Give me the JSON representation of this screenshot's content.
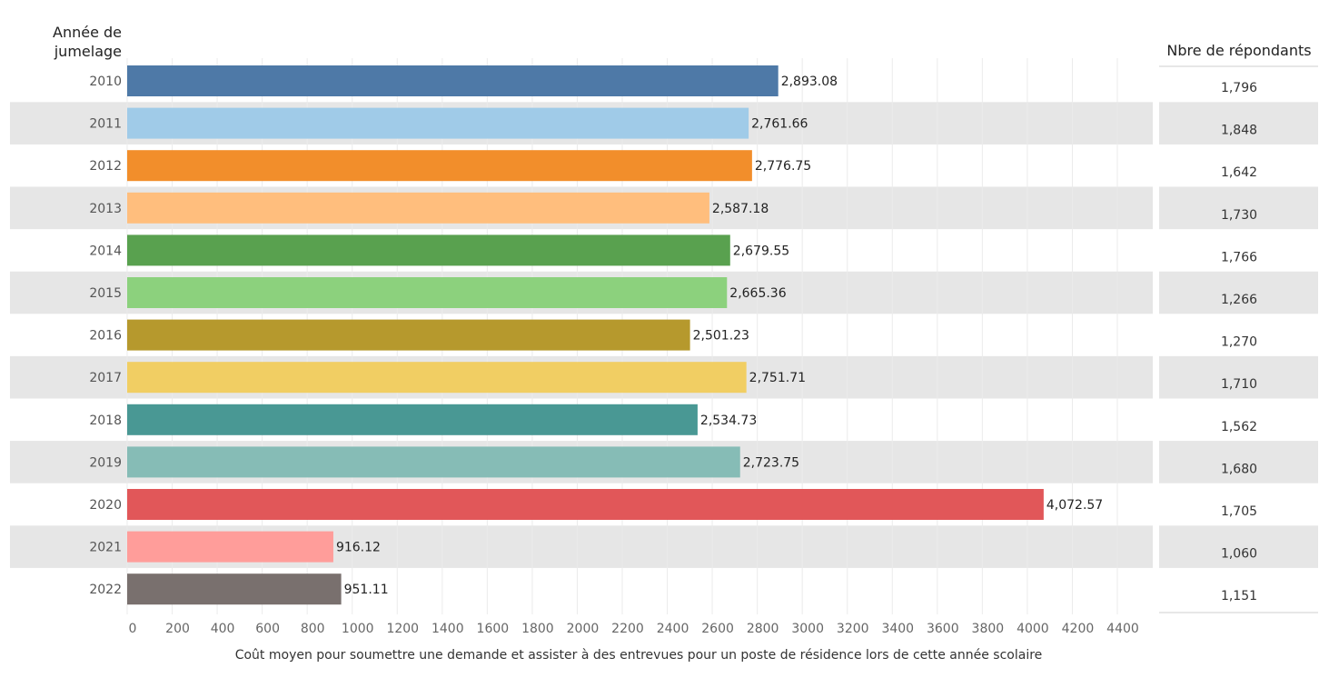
{
  "chart_data": {
    "type": "bar",
    "orientation": "horizontal",
    "y_header": [
      "Année de",
      "jumelage"
    ],
    "right_header": "Nbre de répondants",
    "xlabel": "Coût moyen pour soumettre une demande et assister à des entrevues pour un poste de résidence lors de cette année scolaire",
    "xlim": [
      0,
      4500
    ],
    "xticks": [
      0,
      200,
      400,
      600,
      800,
      1000,
      1200,
      1400,
      1600,
      1800,
      2000,
      2200,
      2400,
      2600,
      2800,
      3000,
      3200,
      3400,
      3600,
      3800,
      4000,
      4200,
      4400
    ],
    "categories": [
      "2010",
      "2011",
      "2012",
      "2013",
      "2014",
      "2015",
      "2016",
      "2017",
      "2018",
      "2019",
      "2020",
      "2021",
      "2022"
    ],
    "values": [
      2893.08,
      2761.66,
      2776.75,
      2587.18,
      2679.55,
      2665.36,
      2501.23,
      2751.71,
      2534.73,
      2723.75,
      4072.57,
      916.12,
      951.11
    ],
    "value_labels": [
      "2,893.08",
      "2,761.66",
      "2,776.75",
      "2,587.18",
      "2,679.55",
      "2,665.36",
      "2,501.23",
      "2,751.71",
      "2,534.73",
      "2,723.75",
      "4,072.57",
      "916.12",
      "951.11"
    ],
    "respondents": [
      "1,796",
      "1,848",
      "1,642",
      "1,730",
      "1,766",
      "1,266",
      "1,270",
      "1,710",
      "1,562",
      "1,680",
      "1,705",
      "1,060",
      "1,151"
    ],
    "colors": [
      "#4e79a7",
      "#a0cbe8",
      "#f28e2b",
      "#ffbe7d",
      "#59a14f",
      "#8cd17d",
      "#b6992d",
      "#f1ce63",
      "#499894",
      "#86bcb6",
      "#e15759",
      "#ff9d9a",
      "#79706e"
    ],
    "grid": true
  }
}
